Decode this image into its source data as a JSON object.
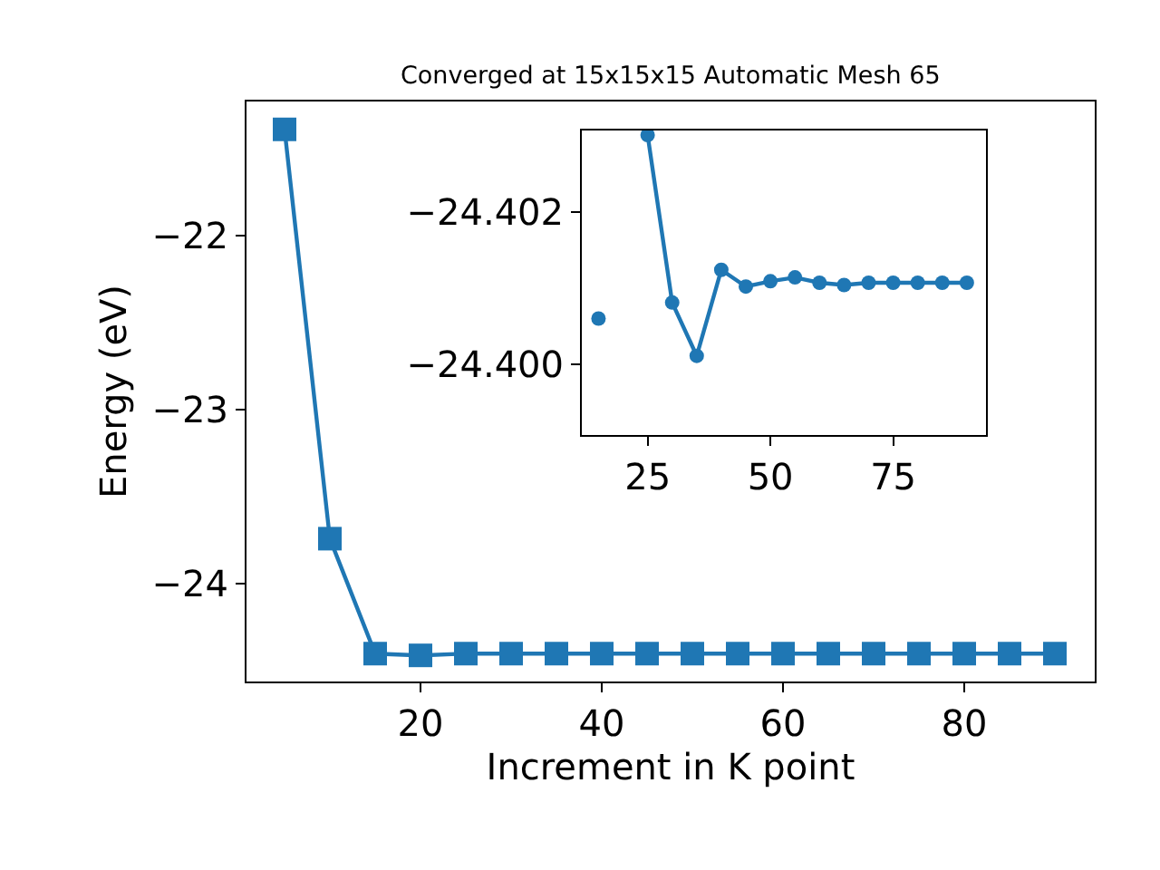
{
  "chart_data": [
    {
      "type": "line",
      "title": "Converged at 15x15x15 Automatic Mesh 65",
      "xlabel": "Increment in K point",
      "ylabel": "Energy (eV)",
      "x": [
        5,
        10,
        15,
        20,
        25,
        30,
        35,
        40,
        45,
        50,
        55,
        60,
        65,
        70,
        75,
        80,
        85,
        90
      ],
      "series": [
        {
          "color": "#1f77b4",
          "values": [
            -21.39,
            -23.74,
            -24.4,
            -24.41,
            -24.4,
            -24.4,
            -24.4,
            -24.4,
            -24.4,
            -24.4,
            -24.4,
            -24.4,
            -24.4,
            -24.4,
            -24.4,
            -24.4,
            -24.4,
            -24.4
          ]
        }
      ],
      "xlim": [
        0.8,
        94.4
      ],
      "ylim": [
        -24.56,
        -21.23
      ],
      "xticks": [
        20,
        40,
        60,
        80
      ],
      "yticks": [
        -24,
        -23,
        -22
      ],
      "marker": "square",
      "line_style": "solid"
    },
    {
      "type": "line",
      "x": [
        15,
        20,
        25,
        30,
        35,
        40,
        45,
        50,
        55,
        60,
        65,
        70,
        75,
        80,
        85,
        90
      ],
      "series": [
        {
          "color": "#1f77b4",
          "values": [
            -24.4006,
            null,
            -24.40301,
            -24.40081,
            -24.40011,
            -24.40124,
            -24.40102,
            -24.40109,
            -24.40114,
            -24.40107,
            -24.40104,
            -24.40107,
            -24.40107,
            -24.40107,
            -24.40107,
            -24.40107
          ]
        }
      ],
      "xlim": [
        11.6,
        93.9
      ],
      "ylim": [
        -24.39907,
        -24.40307
      ],
      "xticks": [
        25,
        50,
        75
      ],
      "yticks": [
        -24.402,
        {
          "value": -24.4,
          "label": "−24.400"
        }
      ],
      "marker": "circle",
      "line_style": "solid"
    }
  ]
}
